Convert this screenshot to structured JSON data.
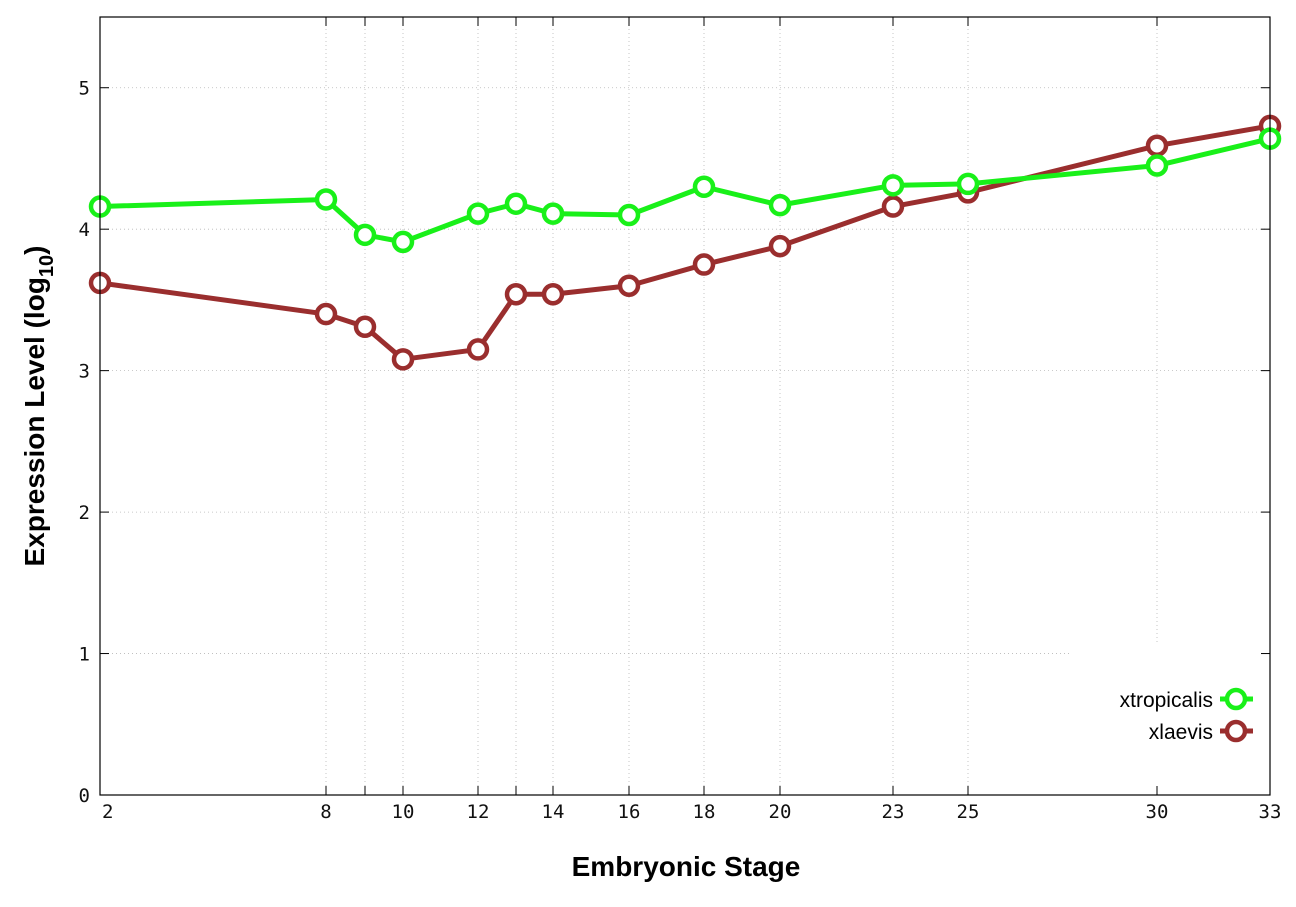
{
  "chart_data": {
    "type": "line",
    "xlabel": "Embryonic Stage",
    "ylabel_main": "Expression Level (log",
    "ylabel_sub": "10",
    "ylabel_close": ")",
    "ylim": [
      0,
      5.5
    ],
    "y_ticks": [
      0,
      1,
      2,
      3,
      4,
      5
    ],
    "x_ticks": [
      2,
      8,
      10,
      12,
      14,
      16,
      18,
      20,
      23,
      25,
      30,
      33
    ],
    "x_ticks_minor": [
      9,
      13
    ],
    "grid": true,
    "legend_position": "bottom-right",
    "series": [
      {
        "name": "xtropicalis",
        "color": "#19f019",
        "x": [
          2,
          8,
          9,
          10,
          12,
          13,
          14,
          16,
          18,
          20,
          23,
          25,
          30,
          33
        ],
        "y": [
          4.16,
          4.21,
          3.96,
          3.91,
          4.11,
          4.18,
          4.11,
          4.1,
          4.3,
          4.17,
          4.31,
          4.32,
          4.45,
          4.64
        ]
      },
      {
        "name": "xlaevis",
        "color": "#9a2e2e",
        "x": [
          2,
          8,
          9,
          10,
          12,
          13,
          14,
          16,
          18,
          20,
          23,
          25,
          30,
          33
        ],
        "y": [
          3.62,
          3.4,
          3.31,
          3.08,
          3.15,
          3.54,
          3.54,
          3.6,
          3.75,
          3.88,
          4.16,
          4.26,
          4.59,
          4.73
        ]
      }
    ]
  }
}
